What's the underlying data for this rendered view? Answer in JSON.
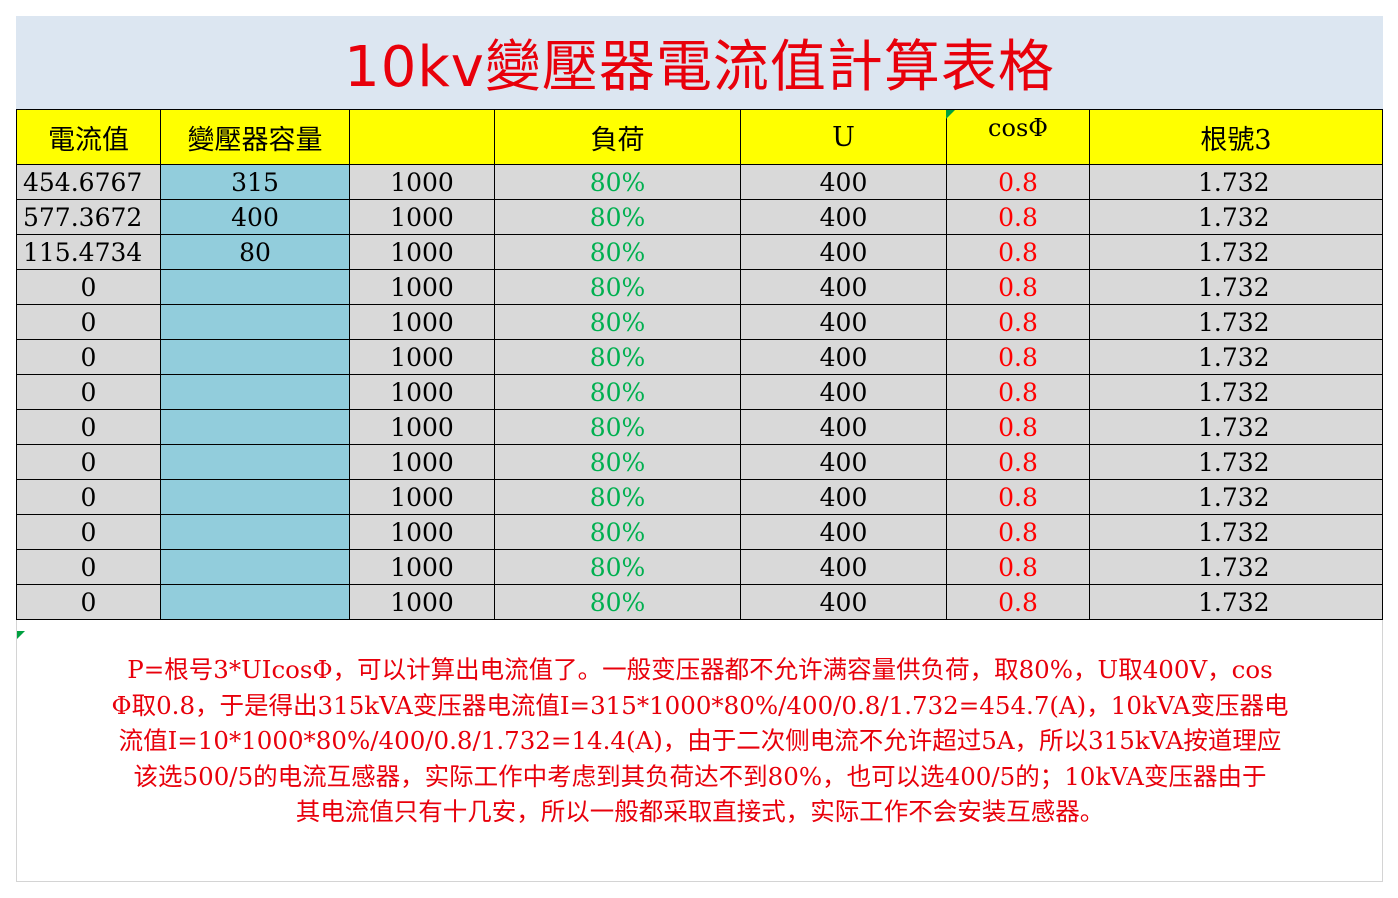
{
  "title": "10kv變壓器電流值計算表格",
  "headers": [
    "電流值",
    "變壓器容量",
    "",
    "負荷",
    "U",
    "cosΦ",
    "根號3"
  ],
  "rows": [
    [
      "454.6767",
      "315",
      "1000",
      "80%",
      "400",
      "0.8",
      "1.732"
    ],
    [
      "577.3672",
      "400",
      "1000",
      "80%",
      "400",
      "0.8",
      "1.732"
    ],
    [
      "115.4734",
      "80",
      "1000",
      "80%",
      "400",
      "0.8",
      "1.732"
    ],
    [
      "0",
      "",
      "1000",
      "80%",
      "400",
      "0.8",
      "1.732"
    ],
    [
      "0",
      "",
      "1000",
      "80%",
      "400",
      "0.8",
      "1.732"
    ],
    [
      "0",
      "",
      "1000",
      "80%",
      "400",
      "0.8",
      "1.732"
    ],
    [
      "0",
      "",
      "1000",
      "80%",
      "400",
      "0.8",
      "1.732"
    ],
    [
      "0",
      "",
      "1000",
      "80%",
      "400",
      "0.8",
      "1.732"
    ],
    [
      "0",
      "",
      "1000",
      "80%",
      "400",
      "0.8",
      "1.732"
    ],
    [
      "0",
      "",
      "1000",
      "80%",
      "400",
      "0.8",
      "1.732"
    ],
    [
      "0",
      "",
      "1000",
      "80%",
      "400",
      "0.8",
      "1.732"
    ],
    [
      "0",
      "",
      "1000",
      "80%",
      "400",
      "0.8",
      "1.732"
    ],
    [
      "0",
      "",
      "1000",
      "80%",
      "400",
      "0.8",
      "1.732"
    ]
  ],
  "note_lines": [
    "P=根号3*UIcosΦ，可以计算出电流值了。一般变压器都不允许满容量供负荷，取80%，U取400V，cos",
    "Φ取0.8，于是得出315kVA变压器电流值I=315*1000*80%/400/0.8/1.732=454.7(A)，10kVA变压器电",
    "流值I=10*1000*80%/400/0.8/1.732=14.4(A)，由于二次侧电流不允许超过5A，所以315kVA按道理应",
    "该选500/5的电流互感器，实际工作中考虑到其负荷达不到80%，也可以选400/5的；10kVA变压器由于",
    "其电流值只有十几安，所以一般都采取直接式，实际工作不会安装互感器。"
  ],
  "colors": {
    "title_text": "#e8000b",
    "title_bg": "#dce6f1",
    "header_bg": "#ffff00",
    "capacity_bg": "#92cddc",
    "cell_bg": "#d9d9d9",
    "load_text": "#00b050",
    "cos_text": "#ff0000",
    "note_text": "#e8000b"
  }
}
